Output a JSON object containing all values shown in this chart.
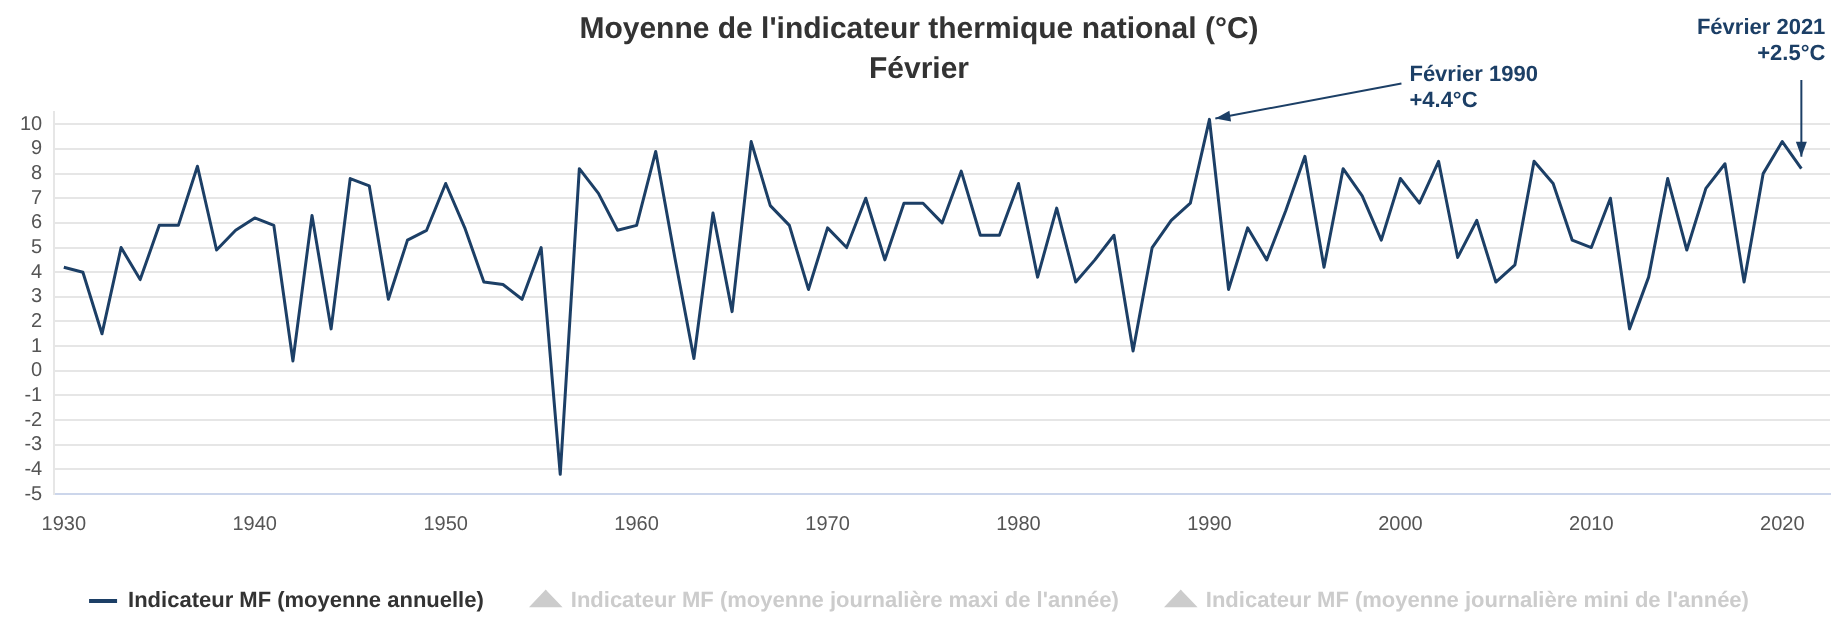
{
  "chart_data": {
    "type": "line",
    "title": "Moyenne de l'indicateur thermique national (°C)",
    "subtitle": "Février",
    "x": [
      1930,
      1931,
      1932,
      1933,
      1934,
      1935,
      1936,
      1937,
      1938,
      1939,
      1940,
      1941,
      1942,
      1943,
      1944,
      1945,
      1946,
      1947,
      1948,
      1949,
      1950,
      1951,
      1952,
      1953,
      1954,
      1955,
      1956,
      1957,
      1958,
      1959,
      1960,
      1961,
      1962,
      1963,
      1964,
      1965,
      1966,
      1967,
      1968,
      1969,
      1970,
      1971,
      1972,
      1973,
      1974,
      1975,
      1976,
      1977,
      1978,
      1979,
      1980,
      1981,
      1982,
      1983,
      1984,
      1985,
      1986,
      1987,
      1988,
      1989,
      1990,
      1991,
      1992,
      1993,
      1994,
      1995,
      1996,
      1997,
      1998,
      1999,
      2000,
      2001,
      2002,
      2003,
      2004,
      2005,
      2006,
      2007,
      2008,
      2009,
      2010,
      2011,
      2012,
      2013,
      2014,
      2015,
      2016,
      2017,
      2018,
      2019,
      2020,
      2021
    ],
    "series": [
      {
        "name": "Indicateur MF (moyenne annuelle)",
        "color": "#1c3f66",
        "marker": "none",
        "values": [
          4.2,
          4.0,
          1.5,
          5.0,
          3.7,
          5.9,
          5.9,
          8.3,
          4.9,
          5.7,
          6.2,
          5.9,
          0.4,
          6.3,
          1.7,
          7.8,
          7.5,
          2.9,
          5.3,
          5.7,
          7.6,
          5.8,
          3.6,
          3.5,
          2.9,
          5.0,
          -4.2,
          8.2,
          7.2,
          5.7,
          5.9,
          8.9,
          4.6,
          0.5,
          6.4,
          2.4,
          9.3,
          6.7,
          5.9,
          3.3,
          5.8,
          5.0,
          7.0,
          4.5,
          6.8,
          6.8,
          6.0,
          8.1,
          5.5,
          5.5,
          7.6,
          3.8,
          6.6,
          3.6,
          4.5,
          5.5,
          0.8,
          5.0,
          6.1,
          6.8,
          10.2,
          3.3,
          5.8,
          4.5,
          6.5,
          8.7,
          4.2,
          8.2,
          7.1,
          5.3,
          7.8,
          6.8,
          8.5,
          4.6,
          6.1,
          3.6,
          4.3,
          8.5,
          7.6,
          5.3,
          5.0,
          7.0,
          1.7,
          3.8,
          7.8,
          4.9,
          7.4,
          8.4,
          3.6,
          8.0,
          9.3,
          8.2
        ]
      },
      {
        "name": "Indicateur MF (moyenne journalière maxi de l'année)",
        "color": "#cccccc",
        "marker": "triangle",
        "values": [
          null,
          null,
          null,
          null,
          null,
          null,
          null,
          null,
          null,
          null,
          null,
          null,
          null,
          null,
          null,
          null,
          null,
          null,
          null,
          null,
          null,
          null,
          null,
          null,
          null,
          null,
          null,
          null,
          null,
          null,
          null,
          null,
          null,
          null,
          null,
          null,
          null,
          null,
          null,
          null,
          null,
          null,
          null,
          null,
          null,
          null,
          null,
          null,
          null,
          null,
          null,
          null,
          null,
          null,
          null,
          null,
          null,
          null,
          null,
          null,
          null,
          null,
          null,
          null,
          null,
          null,
          null,
          null,
          null,
          null,
          null,
          null,
          null,
          null,
          null,
          null,
          null,
          null,
          null,
          null,
          null,
          null,
          null,
          null,
          null,
          null,
          null,
          null,
          null,
          null,
          null,
          null
        ]
      },
      {
        "name": "Indicateur MF (moyenne journalière mini de l'année)",
        "color": "#cccccc",
        "marker": "triangle",
        "values": [
          null,
          null,
          null,
          null,
          null,
          null,
          null,
          null,
          null,
          null,
          null,
          null,
          null,
          null,
          null,
          null,
          null,
          null,
          null,
          null,
          null,
          null,
          null,
          null,
          null,
          null,
          null,
          null,
          null,
          null,
          null,
          null,
          null,
          null,
          null,
          null,
          null,
          null,
          null,
          null,
          null,
          null,
          null,
          null,
          null,
          null,
          null,
          null,
          null,
          null,
          null,
          null,
          null,
          null,
          null,
          null,
          null,
          null,
          null,
          null,
          null,
          null,
          null,
          null,
          null,
          null,
          null,
          null,
          null,
          null,
          null,
          null,
          null,
          null,
          null,
          null,
          null,
          null,
          null,
          null,
          null,
          null,
          null,
          null,
          null,
          null,
          null,
          null,
          null,
          null,
          null,
          null
        ]
      }
    ],
    "xlim": [
      1929.5,
      2022.5
    ],
    "xticks": [
      1930,
      1940,
      1950,
      1960,
      1970,
      1980,
      1990,
      2000,
      2010,
      2020
    ],
    "ylim": [
      -5,
      10.5
    ],
    "yticks": [
      -5,
      -4,
      -3,
      -2,
      -1,
      0,
      1,
      2,
      3,
      4,
      5,
      6,
      7,
      8,
      9,
      10
    ],
    "grid": "y",
    "legend": "bottom",
    "annotations": [
      {
        "text": "Février 1990\n+4.4°C",
        "x": 1990,
        "y": 10.2
      },
      {
        "text": "Février 2021\n+2.5°C",
        "x": 2021,
        "y": 8.2
      }
    ]
  }
}
